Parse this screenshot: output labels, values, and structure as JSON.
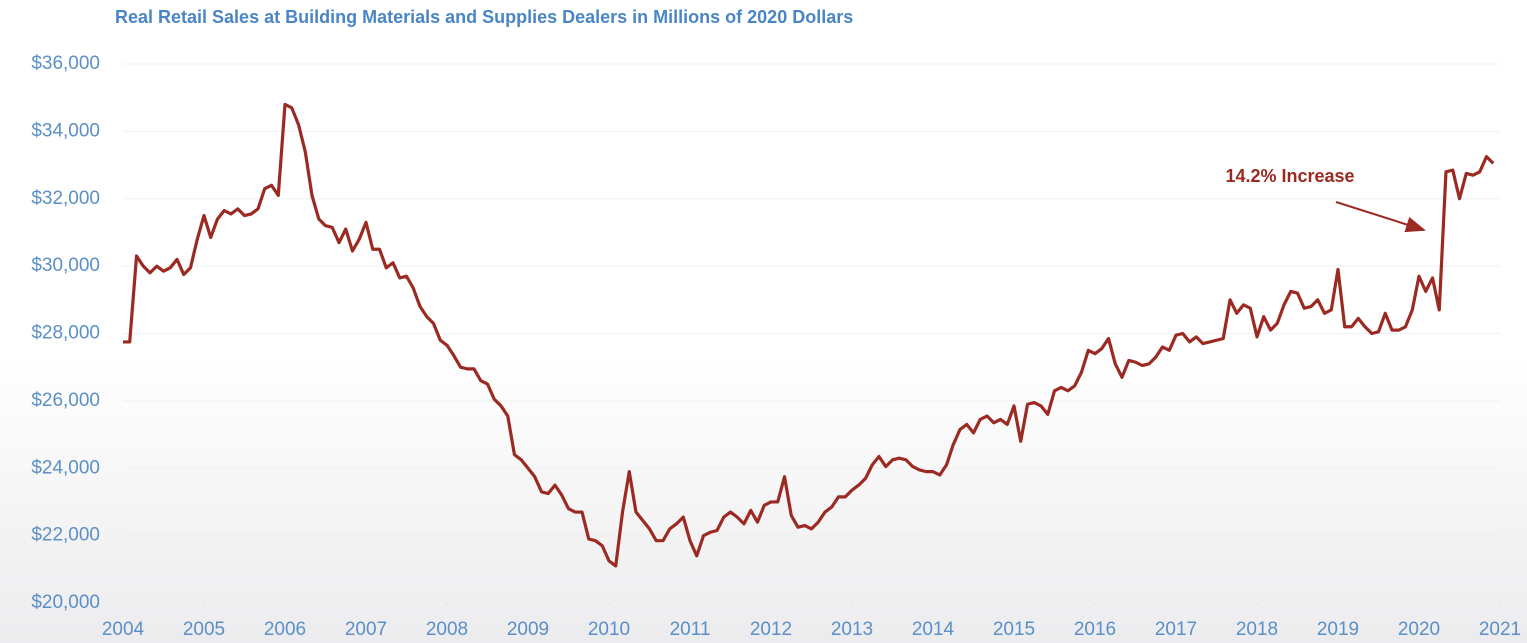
{
  "chart_data": {
    "type": "line",
    "title": "Real Retail Sales at Building Materials and Supplies Dealers in Millions of 2020 Dollars",
    "annotation": "14.2% Increase",
    "color": "#9b2a22",
    "grid": true,
    "xlim": [
      2004,
      2021
    ],
    "xticks": [
      2004,
      2005,
      2006,
      2007,
      2008,
      2009,
      2010,
      2011,
      2012,
      2013,
      2014,
      2015,
      2016,
      2017,
      2018,
      2019,
      2020,
      2021
    ],
    "ylim": [
      20000,
      36000
    ],
    "yticks": [
      {
        "value": 20000,
        "label": "$20,000"
      },
      {
        "value": 22000,
        "label": "$22,000"
      },
      {
        "value": 24000,
        "label": "$24,000"
      },
      {
        "value": 26000,
        "label": "$26,000"
      },
      {
        "value": 28000,
        "label": "$28,000"
      },
      {
        "value": 30000,
        "label": "$30,000"
      },
      {
        "value": 32000,
        "label": "$32,000"
      },
      {
        "value": 34000,
        "label": "$34,000"
      },
      {
        "value": 36000,
        "label": "$36,000"
      }
    ],
    "x": [
      2004,
      2004.083,
      2004.167,
      2004.25,
      2004.333,
      2004.417,
      2004.5,
      2004.583,
      2004.667,
      2004.75,
      2004.833,
      2004.917,
      2005,
      2005.083,
      2005.167,
      2005.25,
      2005.333,
      2005.417,
      2005.5,
      2005.583,
      2005.667,
      2005.75,
      2005.833,
      2005.917,
      2006,
      2006.083,
      2006.167,
      2006.25,
      2006.333,
      2006.417,
      2006.5,
      2006.583,
      2006.667,
      2006.75,
      2006.833,
      2006.917,
      2007,
      2007.083,
      2007.167,
      2007.25,
      2007.333,
      2007.417,
      2007.5,
      2007.583,
      2007.667,
      2007.75,
      2007.833,
      2007.917,
      2008,
      2008.083,
      2008.167,
      2008.25,
      2008.333,
      2008.417,
      2008.5,
      2008.583,
      2008.667,
      2008.75,
      2008.833,
      2008.917,
      2009,
      2009.083,
      2009.167,
      2009.25,
      2009.333,
      2009.417,
      2009.5,
      2009.583,
      2009.667,
      2009.75,
      2009.833,
      2009.917,
      2010,
      2010.083,
      2010.167,
      2010.25,
      2010.333,
      2010.417,
      2010.5,
      2010.583,
      2010.667,
      2010.75,
      2010.833,
      2010.917,
      2011,
      2011.083,
      2011.167,
      2011.25,
      2011.333,
      2011.417,
      2011.5,
      2011.583,
      2011.667,
      2011.75,
      2011.833,
      2011.917,
      2012,
      2012.083,
      2012.167,
      2012.25,
      2012.333,
      2012.417,
      2012.5,
      2012.583,
      2012.667,
      2012.75,
      2012.833,
      2012.917,
      2013,
      2013.083,
      2013.167,
      2013.25,
      2013.333,
      2013.417,
      2013.5,
      2013.583,
      2013.667,
      2013.75,
      2013.833,
      2013.917,
      2014,
      2014.083,
      2014.167,
      2014.25,
      2014.333,
      2014.417,
      2014.5,
      2014.583,
      2014.667,
      2014.75,
      2014.833,
      2014.917,
      2015,
      2015.083,
      2015.167,
      2015.25,
      2015.333,
      2015.417,
      2015.5,
      2015.583,
      2015.667,
      2015.75,
      2015.833,
      2015.917,
      2016,
      2016.083,
      2016.167,
      2016.25,
      2016.333,
      2016.417,
      2016.5,
      2016.583,
      2016.667,
      2016.75,
      2016.833,
      2016.917,
      2017,
      2017.083,
      2017.167,
      2017.25,
      2017.333,
      2017.417,
      2017.5,
      2017.583,
      2017.667,
      2017.75,
      2017.833,
      2017.917,
      2018,
      2018.083,
      2018.167,
      2018.25,
      2018.333,
      2018.417,
      2018.5,
      2018.583,
      2018.667,
      2018.75,
      2018.833,
      2018.917,
      2019,
      2019.083,
      2019.167,
      2019.25,
      2019.333,
      2019.417,
      2019.5,
      2019.583,
      2019.667,
      2019.75,
      2019.833,
      2019.917,
      2020,
      2020.083,
      2020.167,
      2020.25,
      2020.333,
      2020.417,
      2020.5,
      2020.583,
      2020.667,
      2020.75,
      2020.833,
      2020.917
    ],
    "values": [
      27750,
      27750,
      30300,
      30000,
      29800,
      30000,
      29850,
      29950,
      30200,
      29750,
      29950,
      30800,
      31500,
      30850,
      31400,
      31650,
      31550,
      31700,
      31500,
      31550,
      31700,
      32300,
      32400,
      32100,
      34800,
      34700,
      34200,
      33400,
      32100,
      31400,
      31200,
      31150,
      30700,
      31100,
      30450,
      30800,
      31300,
      30500,
      30500,
      29950,
      30100,
      29650,
      29700,
      29350,
      28800,
      28500,
      28300,
      27800,
      27650,
      27350,
      27000,
      26950,
      26950,
      26600,
      26500,
      26050,
      25850,
      25550,
      24400,
      24250,
      24000,
      23750,
      23300,
      23250,
      23500,
      23200,
      22800,
      22700,
      22700,
      21900,
      21850,
      21700,
      21250,
      21100,
      22700,
      23900,
      22700,
      22450,
      22200,
      21850,
      21850,
      22200,
      22350,
      22550,
      21850,
      21400,
      22000,
      22100,
      22150,
      22550,
      22700,
      22550,
      22350,
      22750,
      22400,
      22900,
      23000,
      23000,
      23750,
      22600,
      22250,
      22300,
      22200,
      22400,
      22700,
      22850,
      23150,
      23150,
      23350,
      23500,
      23700,
      24100,
      24350,
      24050,
      24250,
      24300,
      24250,
      24050,
      23950,
      23900,
      23900,
      23800,
      24100,
      24700,
      25150,
      25300,
      25050,
      25450,
      25550,
      25350,
      25450,
      25300,
      25850,
      24800,
      25900,
      25950,
      25850,
      25600,
      26300,
      26400,
      26300,
      26450,
      26850,
      27500,
      27400,
      27550,
      27850,
      27100,
      26700,
      27200,
      27150,
      27050,
      27100,
      27300,
      27600,
      27500,
      27950,
      28000,
      27750,
      27900,
      27700,
      27750,
      27800,
      27850,
      29000,
      28600,
      28850,
      28750,
      27900,
      28500,
      28100,
      28300,
      28850,
      29250,
      29200,
      28750,
      28800,
      29000,
      28600,
      28700,
      29900,
      28200,
      28200,
      28450,
      28200,
      28000,
      28050,
      28600,
      28100,
      28100,
      28200,
      28700,
      29700,
      29250,
      29650,
      28700,
      32800,
      32850,
      32000,
      32750,
      32700,
      32800,
      33250,
      33050
    ]
  }
}
